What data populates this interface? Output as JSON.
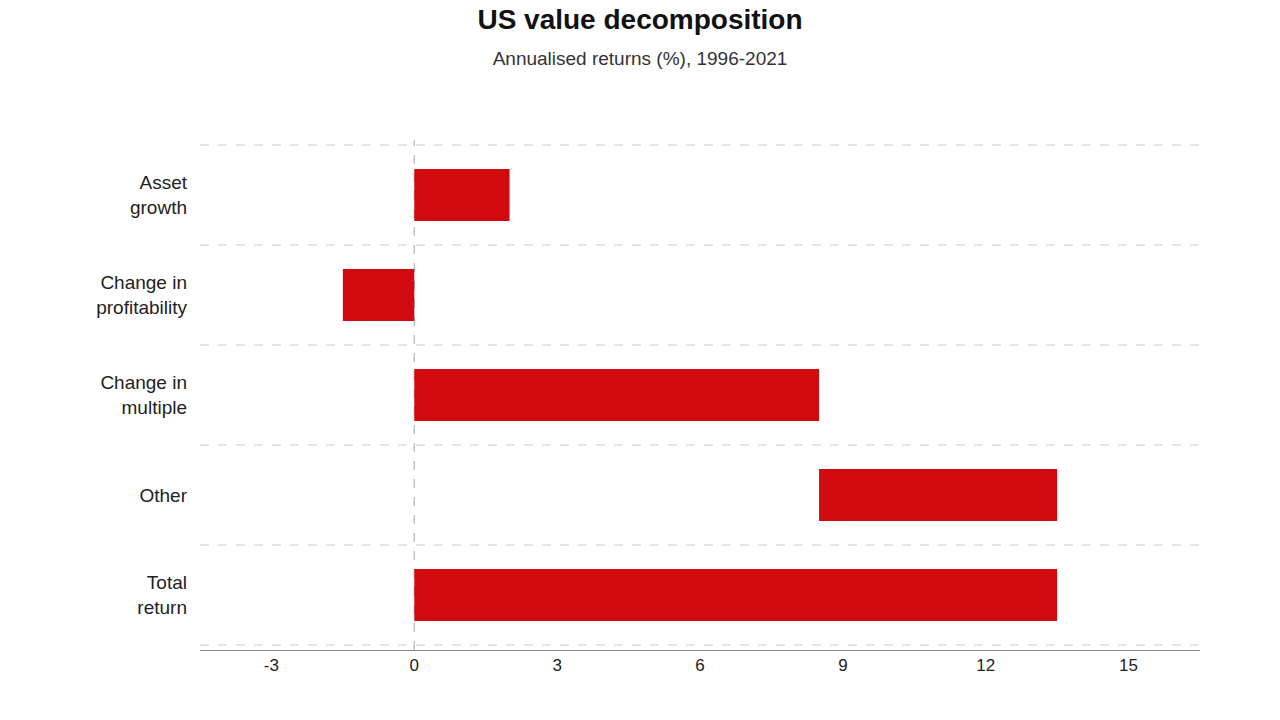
{
  "chart_data": {
    "type": "bar",
    "orientation": "horizontal",
    "title": "US value decomposition",
    "subtitle": "Annualised returns (%), 1996-2021",
    "categories": [
      "Total\nreturn",
      "Other",
      "Change in\nmultiple",
      "Change in\nprofitability",
      "Asset\ngrowth"
    ],
    "values": [
      13.5,
      5.0,
      8.5,
      1.5,
      2.0
    ],
    "base": [
      0,
      8.5,
      0,
      -1.5,
      0
    ],
    "color": "#d10a10",
    "xlim": [
      -4.5,
      16.5
    ],
    "xticks": [
      -3,
      0,
      3,
      6,
      9,
      12,
      15
    ],
    "grid": true
  }
}
